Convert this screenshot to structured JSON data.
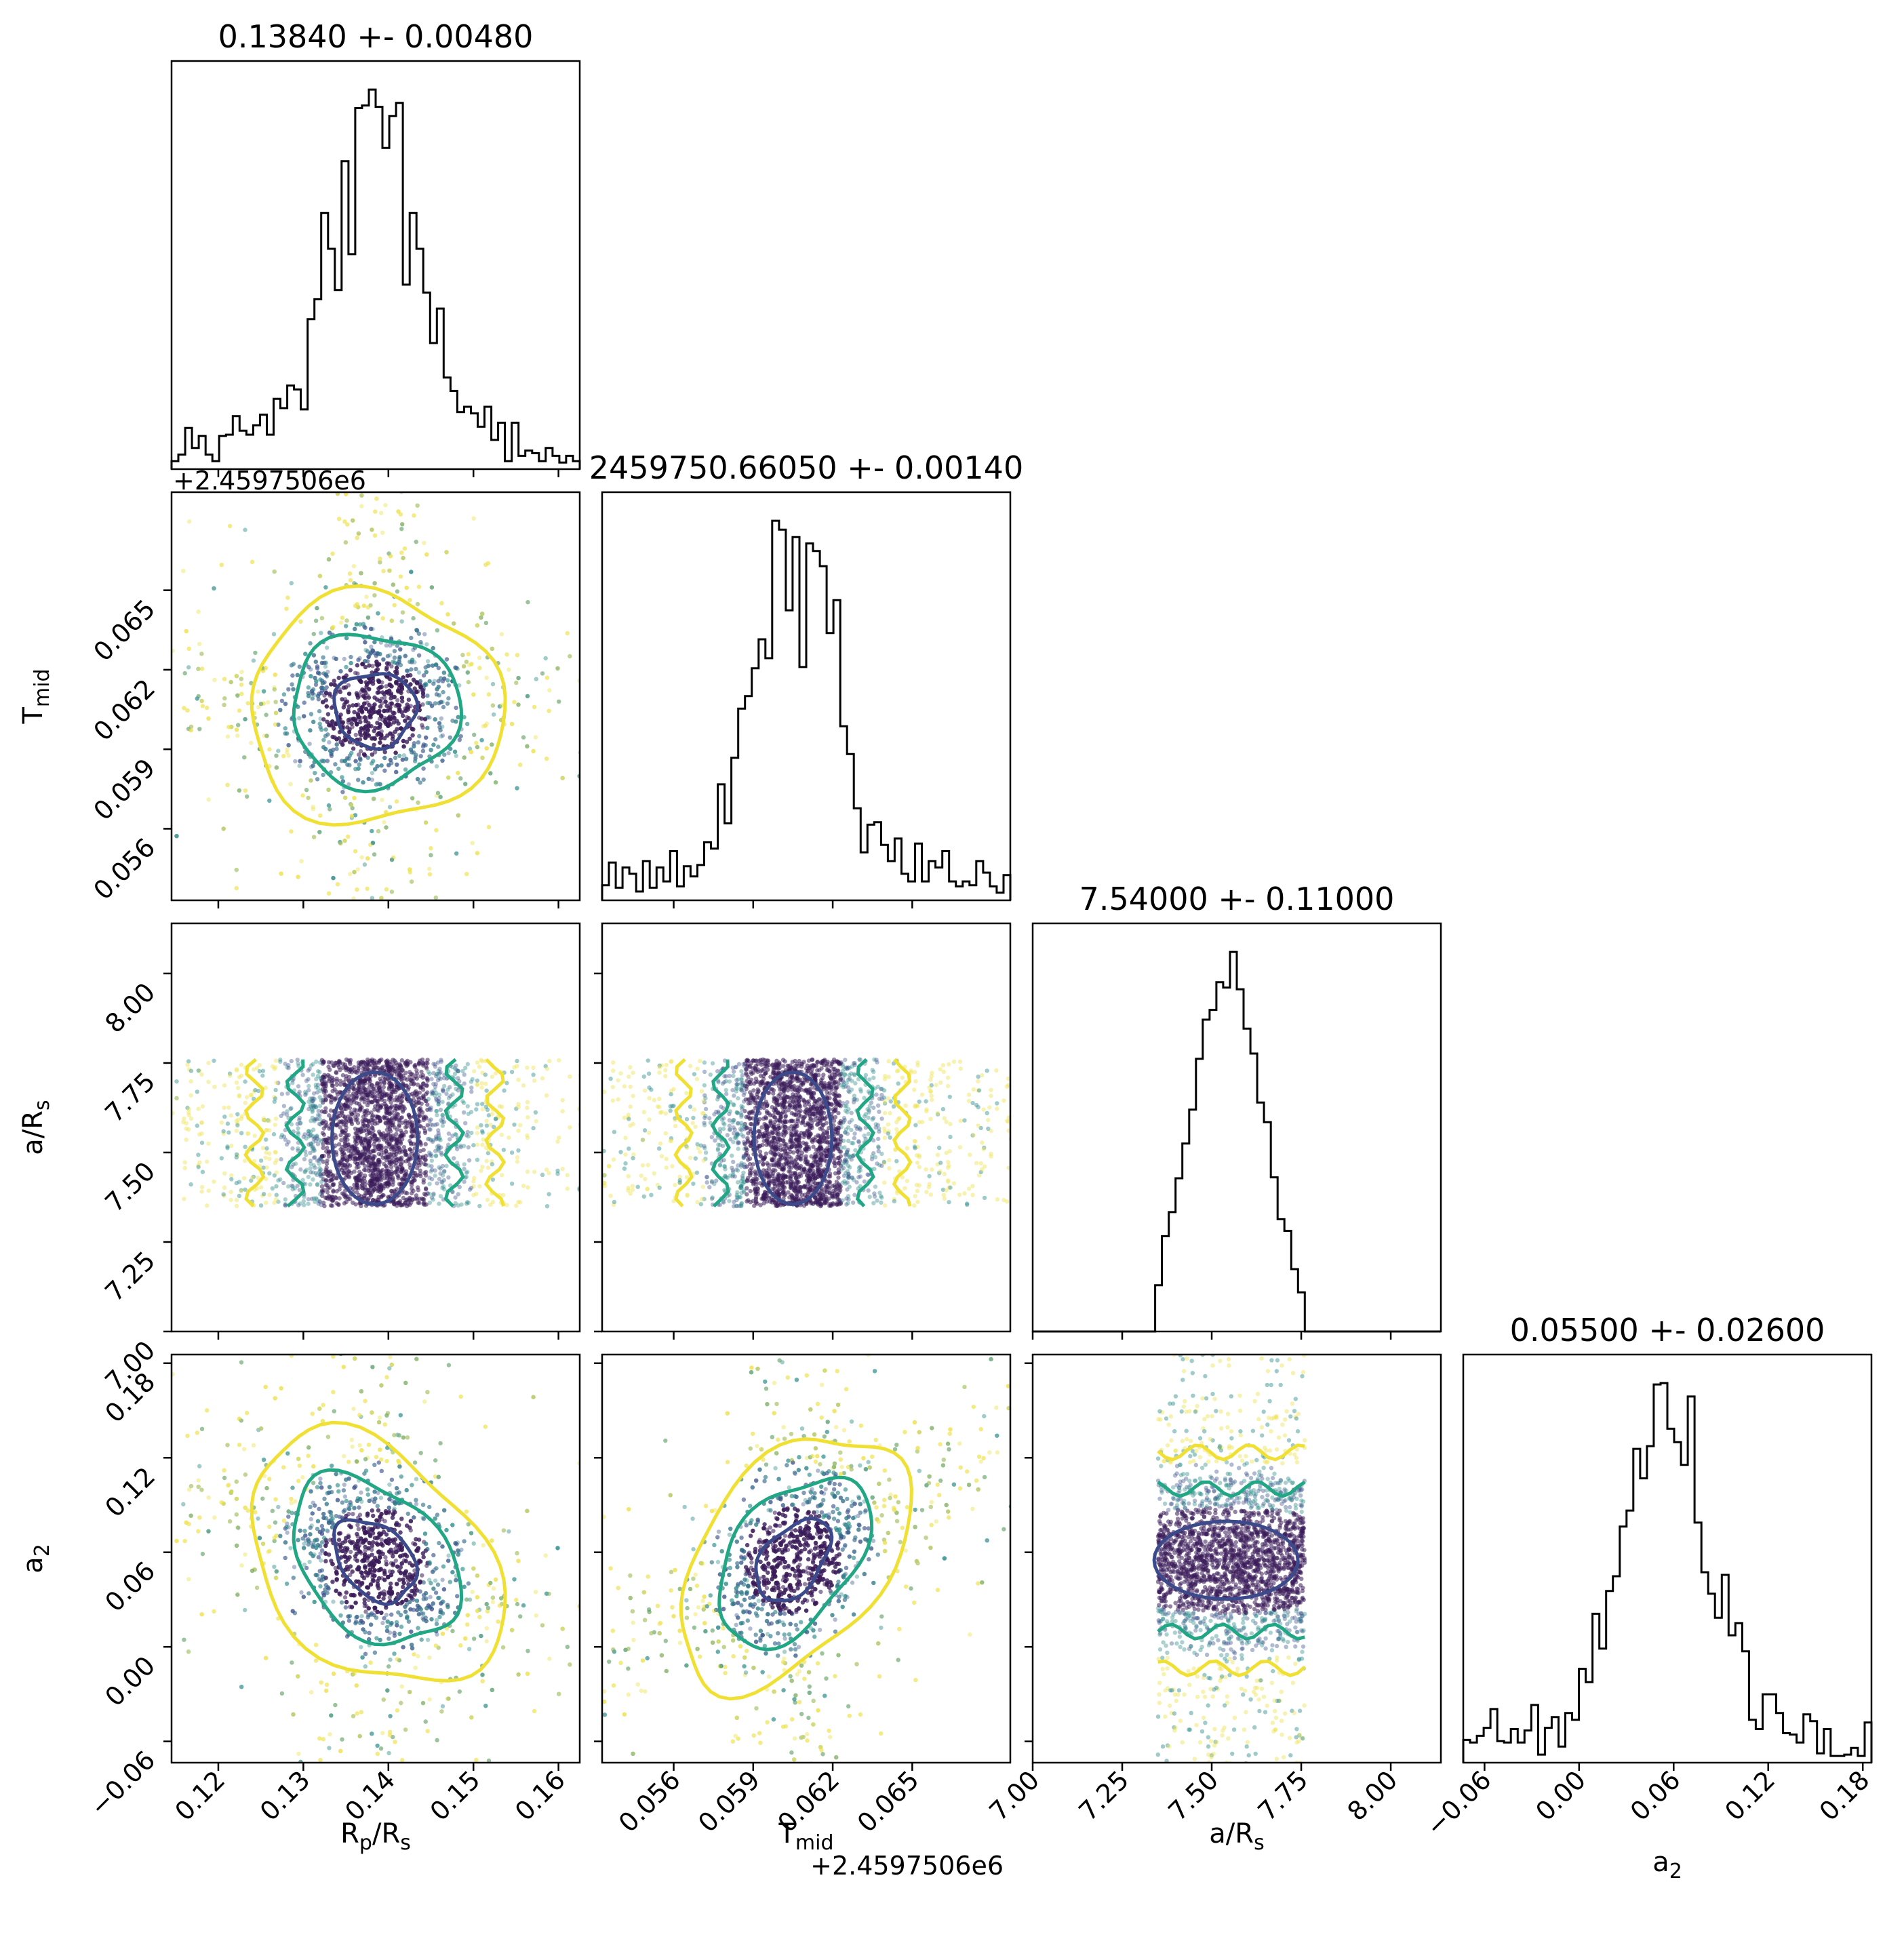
{
  "figure": {
    "type": "corner-plot",
    "colors": {
      "hist_line": "#000000",
      "contour_inner": "#3b4a8a",
      "contour_mid": "#21a784",
      "contour_outer": "#f1e034",
      "points_core": "#3b1c5a",
      "points_mid": "#2a8c8a",
      "points_outer": "#f0e350"
    }
  },
  "parameters": [
    {
      "key": "rp",
      "label": "R",
      "label_sub": "p",
      "label_rest": "/R",
      "label_sub2": "s",
      "title": "0.13840 +- 0.00480",
      "range": [
        0.1145,
        0.1625
      ],
      "ticks": [
        0.12,
        0.13,
        0.14,
        0.15,
        0.16
      ],
      "tick_labels": [
        "0.12",
        "0.13",
        "0.14",
        "0.15",
        "0.16"
      ],
      "offset_text": ""
    },
    {
      "key": "tmid",
      "label": "T",
      "label_sub": "mid",
      "label_rest": "",
      "label_sub2": "",
      "title": "2459750.66050 +- 0.00140",
      "range": [
        0.0533,
        0.0687
      ],
      "ticks": [
        0.056,
        0.059,
        0.062,
        0.065
      ],
      "tick_labels": [
        "0.056",
        "0.059",
        "0.062",
        "0.065"
      ],
      "offset_text": "+2.4597506e6"
    },
    {
      "key": "ars",
      "label": "a/R",
      "label_sub": "s",
      "label_rest": "",
      "label_sub2": "",
      "title": "7.54000 +- 0.11000",
      "range": [
        7.0,
        8.14
      ],
      "ticks": [
        7.0,
        7.25,
        7.5,
        7.75,
        8.0
      ],
      "tick_labels": [
        "7.00",
        "7.25",
        "7.50",
        "7.75",
        "8.00"
      ],
      "offset_text": ""
    },
    {
      "key": "a2",
      "label": "a",
      "label_sub": "2",
      "label_rest": "",
      "label_sub2": "",
      "title": "0.05500 +- 0.02600",
      "range": [
        -0.0735,
        0.1855
      ],
      "ticks": [
        -0.06,
        0.0,
        0.06,
        0.12,
        0.18
      ],
      "tick_labels": [
        "−0.06",
        "0.00",
        "0.06",
        "0.12",
        "0.18"
      ],
      "offset_text": ""
    }
  ],
  "chart_data": {
    "type": "corner",
    "marginals": [
      {
        "param": "rp",
        "center": 0.1384,
        "sigma": 0.0048,
        "kind": "peaked"
      },
      {
        "param": "tmid",
        "center": 0.0605,
        "sigma": 0.0014,
        "kind": "peaked"
      },
      {
        "param": "ars",
        "center": 7.54,
        "sigma": 0.11,
        "kind": "truncated",
        "bounds": [
          7.35,
          7.76
        ]
      },
      {
        "param": "a2",
        "center": 0.055,
        "sigma": 0.026,
        "kind": "peaked"
      }
    ],
    "correlations": [
      {
        "pair": [
          "rp",
          "tmid"
        ],
        "rho": 0.0
      },
      {
        "pair": [
          "rp",
          "ars"
        ],
        "rho": 0.0
      },
      {
        "pair": [
          "tmid",
          "ars"
        ],
        "rho": 0.0
      },
      {
        "pair": [
          "rp",
          "a2"
        ],
        "rho": -0.35
      },
      {
        "pair": [
          "tmid",
          "a2"
        ],
        "rho": 0.45
      },
      {
        "pair": [
          "ars",
          "a2"
        ],
        "rho": 0.0
      }
    ]
  }
}
